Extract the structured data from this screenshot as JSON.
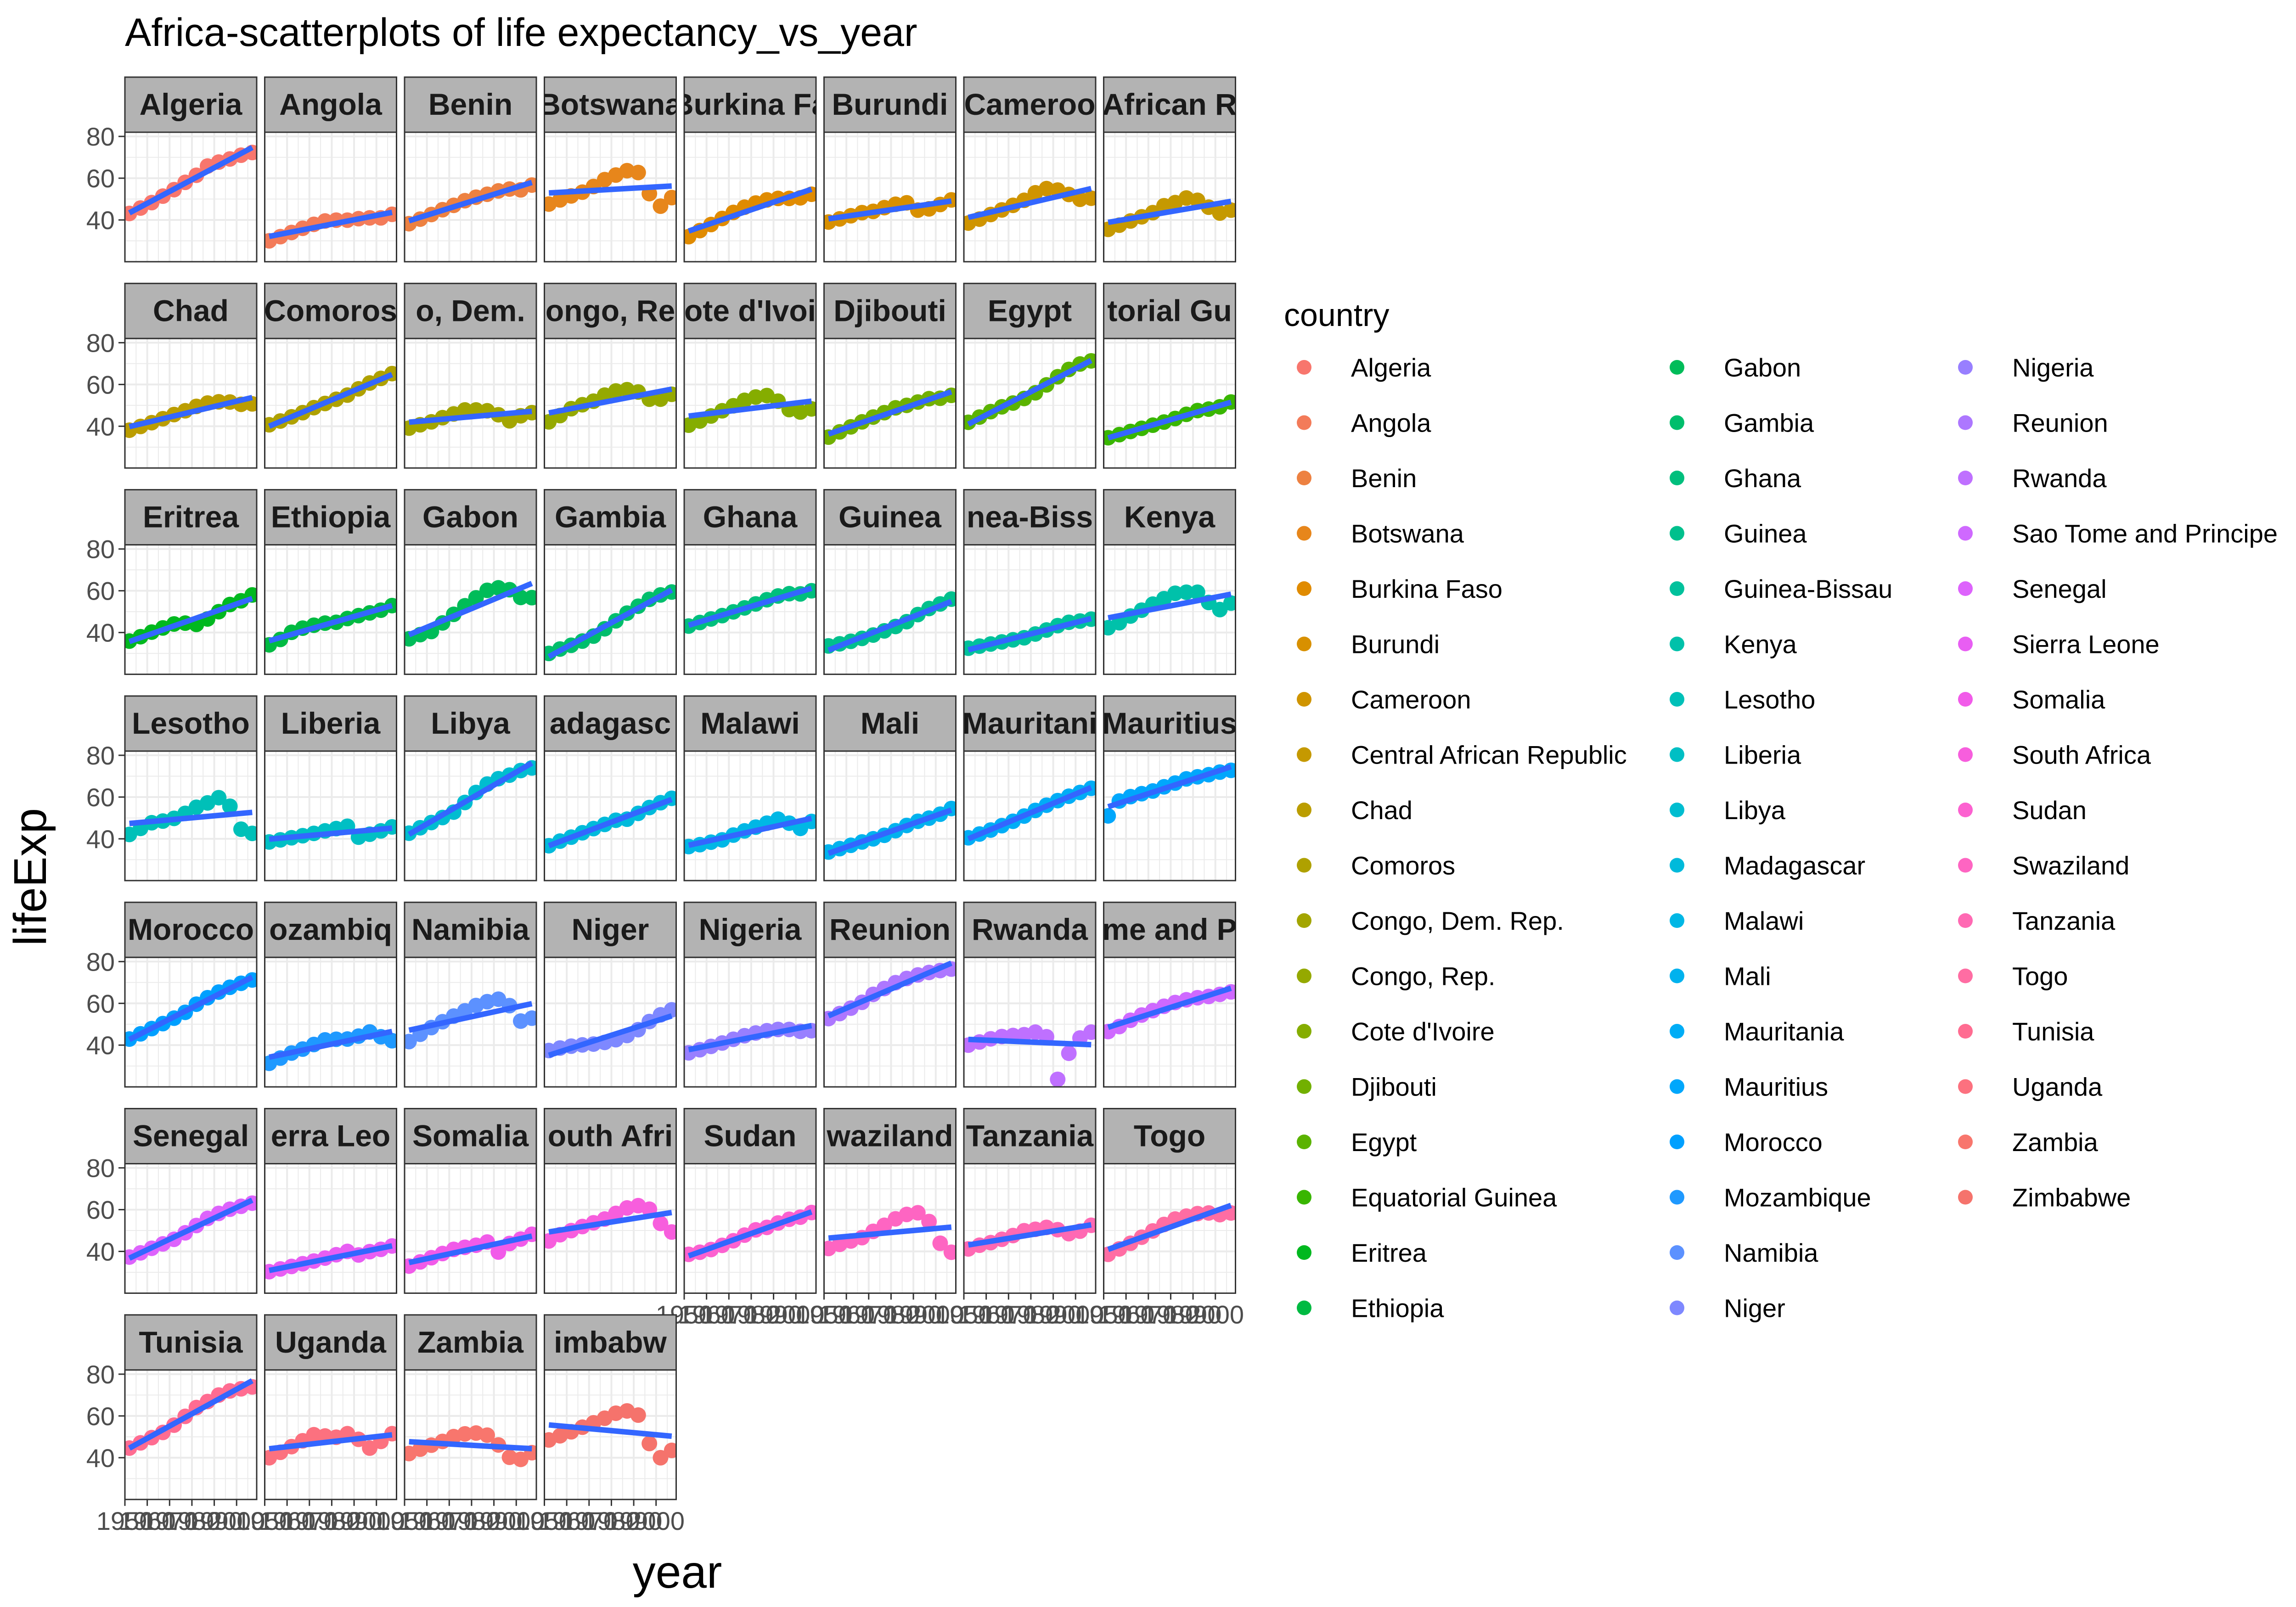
{
  "chart_data": {
    "type": "scatter",
    "title": "Africa-scatterplots of life expectancy_vs_year",
    "xlabel": "year",
    "ylabel": "lifeExp",
    "xlim": [
      1950,
      2009
    ],
    "ylim": [
      20,
      82
    ],
    "y_ticks": [
      40,
      60,
      80
    ],
    "x_tick_labels": [
      "1950",
      "1960",
      "1970",
      "1980",
      "1990",
      "2000"
    ],
    "years": [
      1952,
      1957,
      1962,
      1967,
      1972,
      1977,
      1982,
      1987,
      1992,
      1997,
      2002,
      2007
    ],
    "facet_strip_labels": [
      "Algeria",
      "Angola",
      "Benin",
      "Botswana",
      "Burkina Fa",
      "Burundi",
      "Cameroo",
      "African R",
      "Chad",
      "Comoros",
      "o, Dem.",
      "ongo, Re",
      "ote d'Ivoi",
      "Djibouti",
      "Egypt",
      "torial Gu",
      "Eritrea",
      "Ethiopia",
      "Gabon",
      "Gambia",
      "Ghana",
      "Guinea",
      "nea-Biss",
      "Kenya",
      "Lesotho",
      "Liberia",
      "Libya",
      "adagasc",
      "Malawi",
      "Mali",
      "Mauritani",
      "Mauritius",
      "Morocco",
      "ozambiq",
      "Namibia",
      "Niger",
      "Nigeria",
      "Reunion",
      "Rwanda",
      "me and P",
      "Senegal",
      "erra Leo",
      "Somalia",
      "outh Afri",
      "Sudan",
      "waziland",
      "Tanzania",
      "Togo",
      "Tunisia",
      "Uganda",
      "Zambia",
      "imbabw"
    ],
    "legend": {
      "title": "country",
      "position": "right",
      "columns": 3
    },
    "grid": true,
    "trend": "linear fit per panel (blue)",
    "trend_color": "#3366FF",
    "series": [
      {
        "name": "Algeria",
        "color": "#F8766D",
        "values": [
          43.1,
          45.7,
          48.3,
          51.4,
          54.5,
          58.0,
          61.4,
          65.8,
          67.7,
          69.2,
          71.0,
          72.3
        ]
      },
      {
        "name": "Angola",
        "color": "#F37B59",
        "values": [
          30.0,
          32.0,
          34.0,
          36.0,
          37.9,
          39.5,
          39.9,
          39.9,
          40.6,
          41.0,
          41.0,
          42.7
        ]
      },
      {
        "name": "Benin",
        "color": "#ED8141",
        "values": [
          38.2,
          40.4,
          42.6,
          44.9,
          47.0,
          49.2,
          50.9,
          52.3,
          53.9,
          54.8,
          54.4,
          56.7
        ]
      },
      {
        "name": "Botswana",
        "color": "#E7861B",
        "values": [
          47.6,
          49.6,
          51.5,
          53.3,
          56.0,
          59.3,
          61.5,
          63.6,
          62.7,
          52.6,
          46.6,
          50.7
        ]
      },
      {
        "name": "Burkina Faso",
        "color": "#E08B00",
        "values": [
          32.0,
          34.9,
          37.8,
          40.7,
          43.6,
          46.1,
          48.1,
          49.6,
          50.3,
          50.3,
          50.6,
          52.3
        ]
      },
      {
        "name": "Burundi",
        "color": "#D89000",
        "values": [
          39.0,
          40.5,
          42.0,
          43.5,
          44.1,
          45.9,
          47.5,
          48.2,
          44.7,
          45.3,
          47.4,
          49.6
        ]
      },
      {
        "name": "Cameroon",
        "color": "#CF9400",
        "values": [
          38.5,
          40.4,
          42.6,
          44.8,
          47.0,
          49.4,
          53.0,
          55.0,
          54.3,
          52.2,
          49.9,
          50.4
        ]
      },
      {
        "name": "Central African Republic",
        "color": "#C59900",
        "values": [
          35.5,
          37.5,
          39.5,
          41.5,
          43.5,
          46.8,
          48.3,
          50.5,
          49.4,
          46.1,
          43.3,
          44.7
        ]
      },
      {
        "name": "Chad",
        "color": "#BB9D00",
        "values": [
          38.1,
          39.9,
          41.7,
          43.6,
          45.6,
          47.4,
          49.5,
          51.1,
          51.7,
          51.6,
          50.5,
          50.7
        ]
      },
      {
        "name": "Comoros",
        "color": "#AFA100",
        "values": [
          40.7,
          42.5,
          44.5,
          46.5,
          48.9,
          50.9,
          52.9,
          54.9,
          57.9,
          60.7,
          62.9,
          65.2
        ]
      },
      {
        "name": "Congo, Dem. Rep.",
        "color": "#A3A500",
        "values": [
          39.1,
          40.7,
          42.1,
          44.1,
          45.9,
          47.8,
          47.8,
          47.4,
          45.5,
          42.6,
          45.0,
          46.5
        ]
      },
      {
        "name": "Congo, Rep.",
        "color": "#95A900",
        "values": [
          42.1,
          45.1,
          48.4,
          50.3,
          52.0,
          54.9,
          56.9,
          57.5,
          56.4,
          52.96,
          52.97,
          55.3
        ]
      },
      {
        "name": "Cote d'Ivoire",
        "color": "#85AD00",
        "values": [
          40.5,
          42.5,
          44.9,
          47.4,
          49.8,
          52.4,
          53.98,
          54.7,
          52.0,
          47.99,
          46.8,
          48.3
        ]
      },
      {
        "name": "Djibouti",
        "color": "#72B000",
        "values": [
          34.8,
          37.3,
          39.7,
          42.1,
          44.4,
          46.5,
          48.8,
          50.0,
          51.6,
          53.2,
          53.4,
          54.8
        ]
      },
      {
        "name": "Egypt",
        "color": "#5BB300",
        "values": [
          41.9,
          44.4,
          47.0,
          49.3,
          51.1,
          53.3,
          56.0,
          59.8,
          63.7,
          67.2,
          69.8,
          71.3
        ]
      },
      {
        "name": "Equatorial Guinea",
        "color": "#39B600",
        "values": [
          34.5,
          35.98,
          37.5,
          38.99,
          40.5,
          42.0,
          43.7,
          45.7,
          47.5,
          48.2,
          49.3,
          51.6
        ]
      },
      {
        "name": "Eritrea",
        "color": "#00B81F",
        "values": [
          35.9,
          38.0,
          40.2,
          42.2,
          44.1,
          44.5,
          43.9,
          46.5,
          49.99,
          53.4,
          55.2,
          58.0
        ]
      },
      {
        "name": "Ethiopia",
        "color": "#00BA42",
        "values": [
          34.1,
          36.7,
          40.1,
          42.1,
          43.5,
          44.5,
          44.9,
          46.7,
          48.1,
          49.4,
          50.7,
          52.9
        ]
      },
      {
        "name": "Gabon",
        "color": "#00BC59",
        "values": [
          37.0,
          38.99,
          40.5,
          44.6,
          48.7,
          52.8,
          56.6,
          60.2,
          61.4,
          60.5,
          56.8,
          56.7
        ]
      },
      {
        "name": "Gambia",
        "color": "#00BE6C",
        "values": [
          30.0,
          32.1,
          33.9,
          35.9,
          38.3,
          41.8,
          45.6,
          49.3,
          52.6,
          55.9,
          58.0,
          59.4
        ]
      },
      {
        "name": "Ghana",
        "color": "#00BF7D",
        "values": [
          43.1,
          44.8,
          46.5,
          48.1,
          49.9,
          51.8,
          53.7,
          55.7,
          57.5,
          58.6,
          58.5,
          60.0
        ]
      },
      {
        "name": "Guinea",
        "color": "#00C08D",
        "values": [
          33.6,
          34.6,
          35.8,
          37.2,
          38.8,
          40.8,
          42.9,
          45.2,
          48.6,
          51.5,
          53.7,
          56.0
        ]
      },
      {
        "name": "Guinea-Bissau",
        "color": "#00C19C",
        "values": [
          32.5,
          33.5,
          34.5,
          35.5,
          36.5,
          37.5,
          39.3,
          41.2,
          43.3,
          44.9,
          45.5,
          46.4
        ]
      },
      {
        "name": "Kenya",
        "color": "#00C1AA",
        "values": [
          42.3,
          44.7,
          47.9,
          50.7,
          53.6,
          56.2,
          58.8,
          59.3,
          59.3,
          54.4,
          50.99,
          54.1
        ]
      },
      {
        "name": "Lesotho",
        "color": "#00C0B8",
        "values": [
          42.1,
          45.0,
          47.7,
          48.5,
          49.8,
          52.2,
          55.1,
          57.2,
          59.7,
          55.6,
          44.6,
          42.6
        ]
      },
      {
        "name": "Liberia",
        "color": "#00BFC4",
        "values": [
          38.5,
          39.5,
          40.5,
          41.5,
          42.6,
          43.8,
          44.9,
          46.0,
          40.8,
          42.2,
          43.8,
          45.7
        ]
      },
      {
        "name": "Libya",
        "color": "#00BDD0",
        "values": [
          42.7,
          45.3,
          47.8,
          50.2,
          52.8,
          57.4,
          62.2,
          66.2,
          68.8,
          70.5,
          72.7,
          73.95
        ]
      },
      {
        "name": "Madagascar",
        "color": "#00BADB",
        "values": [
          36.7,
          38.9,
          40.8,
          42.9,
          44.9,
          46.9,
          48.9,
          49.4,
          52.2,
          54.98,
          57.3,
          59.4
        ]
      },
      {
        "name": "Malawi",
        "color": "#00B7E5",
        "values": [
          36.3,
          37.2,
          38.4,
          39.5,
          41.8,
          43.8,
          45.6,
          47.5,
          49.4,
          47.5,
          45.0,
          48.3
        ]
      },
      {
        "name": "Mali",
        "color": "#00B2EE",
        "values": [
          33.7,
          35.3,
          36.9,
          38.5,
          40.0,
          41.7,
          43.9,
          46.4,
          48.4,
          49.9,
          51.8,
          54.5
        ]
      },
      {
        "name": "Mauritania",
        "color": "#00ADF6",
        "values": [
          40.5,
          42.3,
          44.2,
          46.3,
          48.4,
          50.9,
          53.6,
          56.1,
          58.3,
          60.4,
          62.2,
          64.2
        ]
      },
      {
        "name": "Mauritius",
        "color": "#00A7FC",
        "values": [
          50.99,
          58.1,
          60.2,
          61.6,
          62.9,
          64.9,
          66.7,
          68.7,
          69.7,
          70.7,
          71.95,
          72.8
        ]
      },
      {
        "name": "Morocco",
        "color": "#00A0FF",
        "values": [
          42.9,
          45.4,
          47.9,
          50.3,
          52.9,
          55.7,
          59.6,
          62.7,
          65.4,
          67.7,
          69.6,
          71.2
        ]
      },
      {
        "name": "Mozambique",
        "color": "#1F99FF",
        "values": [
          31.3,
          33.8,
          36.2,
          38.1,
          40.3,
          42.5,
          42.8,
          42.9,
          44.3,
          46.3,
          44.0,
          42.1
        ]
      },
      {
        "name": "Namibia",
        "color": "#5C91FF",
        "values": [
          41.7,
          45.2,
          48.4,
          51.2,
          53.9,
          56.4,
          58.97,
          60.8,
          61.99,
          58.9,
          51.5,
          52.9
        ]
      },
      {
        "name": "Niger",
        "color": "#7E88FF",
        "values": [
          37.4,
          38.6,
          39.5,
          40.1,
          40.5,
          41.3,
          42.6,
          44.6,
          47.4,
          51.3,
          54.5,
          56.9
        ]
      },
      {
        "name": "Nigeria",
        "color": "#987FFF",
        "values": [
          36.3,
          37.8,
          39.4,
          41.0,
          42.8,
          44.5,
          45.8,
          46.9,
          47.5,
          47.5,
          46.6,
          46.9
        ]
      },
      {
        "name": "Reunion",
        "color": "#AD77FF",
        "values": [
          52.7,
          55.1,
          57.7,
          60.5,
          64.3,
          67.1,
          69.9,
          71.9,
          73.6,
          74.8,
          75.7,
          76.4
        ]
      },
      {
        "name": "Rwanda",
        "color": "#BF70FF",
        "values": [
          40.0,
          41.5,
          43.0,
          44.1,
          44.6,
          45.0,
          46.2,
          44.0,
          23.6,
          36.1,
          43.4,
          46.2
        ]
      },
      {
        "name": "Sao Tome and Principe",
        "color": "#CF69FF",
        "values": [
          46.5,
          48.9,
          51.9,
          54.4,
          56.5,
          58.6,
          60.4,
          61.7,
          62.7,
          63.3,
          64.3,
          65.5
        ]
      },
      {
        "name": "Senegal",
        "color": "#DD63FC",
        "values": [
          37.3,
          39.3,
          41.5,
          43.6,
          45.8,
          48.9,
          52.4,
          55.8,
          58.2,
          60.2,
          61.6,
          63.1
        ]
      },
      {
        "name": "Sierra Leone",
        "color": "#E85EF3",
        "values": [
          30.3,
          31.6,
          32.8,
          34.1,
          35.4,
          36.8,
          38.4,
          40.0,
          38.3,
          39.9,
          41.0,
          42.6
        ]
      },
      {
        "name": "Somalia",
        "color": "#F15BE9",
        "values": [
          32.98,
          34.98,
          36.98,
          38.98,
          40.97,
          41.97,
          42.96,
          44.5,
          39.7,
          43.8,
          45.9,
          48.2
        ]
      },
      {
        "name": "South Africa",
        "color": "#F75EDD",
        "values": [
          45.0,
          47.99,
          49.95,
          51.9,
          53.7,
          55.5,
          58.2,
          60.8,
          61.9,
          60.2,
          53.4,
          49.3
        ]
      },
      {
        "name": "Sudan",
        "color": "#FC61D0",
        "values": [
          38.6,
          39.6,
          40.9,
          42.9,
          45.1,
          47.8,
          50.3,
          51.5,
          53.6,
          55.4,
          56.4,
          58.6
        ]
      },
      {
        "name": "Swaziland",
        "color": "#FE65C2",
        "values": [
          41.4,
          43.4,
          44.99,
          46.6,
          49.6,
          52.5,
          55.6,
          57.7,
          58.5,
          54.3,
          43.9,
          39.6
        ]
      },
      {
        "name": "Tanzania",
        "color": "#FF69B3",
        "values": [
          41.2,
          42.97,
          44.2,
          45.8,
          47.6,
          49.9,
          50.6,
          51.5,
          50.4,
          48.5,
          49.7,
          52.5
        ]
      },
      {
        "name": "Togo",
        "color": "#FF6DA3",
        "values": [
          38.6,
          41.2,
          43.9,
          46.8,
          49.8,
          52.9,
          55.5,
          56.9,
          58.1,
          58.4,
          57.6,
          58.4
        ]
      },
      {
        "name": "Tunisia",
        "color": "#FF6C91",
        "values": [
          44.6,
          47.1,
          49.6,
          52.1,
          55.6,
          59.8,
          64.0,
          66.9,
          70.0,
          71.97,
          73.0,
          73.9
        ]
      },
      {
        "name": "Uganda",
        "color": "#FC717F",
        "values": [
          39.98,
          42.6,
          45.3,
          48.1,
          51.0,
          50.4,
          49.8,
          51.5,
          48.8,
          44.6,
          47.8,
          51.5
        ]
      },
      {
        "name": "Zambia",
        "color": "#F8766D",
        "values": [
          42.0,
          44.1,
          46.0,
          47.8,
          50.1,
          51.4,
          51.8,
          50.8,
          46.1,
          40.2,
          39.2,
          42.4
        ]
      },
      {
        "name": "Zimbabwe",
        "color": "#F5736C",
        "values": [
          48.5,
          50.5,
          52.4,
          54.6,
          56.7,
          58.9,
          61.3,
          62.4,
          60.4,
          46.8,
          39.99,
          43.5
        ]
      }
    ]
  }
}
